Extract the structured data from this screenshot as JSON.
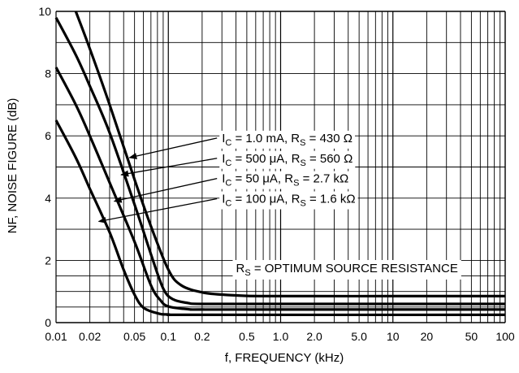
{
  "chart_data": {
    "type": "line",
    "xlabel": "f, FREQUENCY (kHz)",
    "ylabel": "NF, NOISE FIGURE (dB)",
    "xscale": "log",
    "xlim": [
      0.01,
      100
    ],
    "ylim": [
      0,
      10
    ],
    "grid": true,
    "legend": "none",
    "xticks": [
      {
        "value": 0.01,
        "label": "0.01"
      },
      {
        "value": 0.02,
        "label": "0.02"
      },
      {
        "value": 0.05,
        "label": "0.05"
      },
      {
        "value": 0.1,
        "label": "0.1"
      },
      {
        "value": 0.2,
        "label": "0.2"
      },
      {
        "value": 0.5,
        "label": "0.5"
      },
      {
        "value": 1,
        "label": "1.0"
      },
      {
        "value": 2,
        "label": "2.0"
      },
      {
        "value": 5,
        "label": "5.0"
      },
      {
        "value": 10,
        "label": "10"
      },
      {
        "value": 20,
        "label": "20"
      },
      {
        "value": 50,
        "label": "50"
      },
      {
        "value": 100,
        "label": "100"
      }
    ],
    "yticks": [
      {
        "value": 0,
        "label": "0"
      },
      {
        "value": 2,
        "label": "2"
      },
      {
        "value": 4,
        "label": "4"
      },
      {
        "value": 6,
        "label": "6"
      },
      {
        "value": 8,
        "label": "8"
      },
      {
        "value": 10,
        "label": "10"
      }
    ],
    "series": [
      {
        "label": {
          "main": "I",
          "sub1": "C",
          "mid": " = 1.0 mA, R",
          "sub2": "S",
          "end": " = 430 Ω"
        },
        "points": [
          [
            0.015,
            10
          ],
          [
            0.02,
            8.8
          ],
          [
            0.03,
            7.0
          ],
          [
            0.05,
            4.6
          ],
          [
            0.07,
            3.1
          ],
          [
            0.1,
            1.7
          ],
          [
            0.13,
            1.2
          ],
          [
            0.2,
            0.97
          ],
          [
            0.3,
            0.9
          ],
          [
            0.5,
            0.86
          ],
          [
            1,
            0.85
          ],
          [
            10,
            0.85
          ],
          [
            100,
            0.85
          ]
        ],
        "arrow_to": [
          0.045,
          5.3
        ],
        "label_at": [
          0.3,
          5.8
        ]
      },
      {
        "label": {
          "main": "I",
          "sub1": "C",
          "mid": " = 500 μA, R",
          "sub2": "S",
          "end": " = 560 Ω"
        },
        "points": [
          [
            0.01,
            9.8
          ],
          [
            0.015,
            8.6
          ],
          [
            0.02,
            7.6
          ],
          [
            0.03,
            6.1
          ],
          [
            0.05,
            3.8
          ],
          [
            0.07,
            2.2
          ],
          [
            0.09,
            1.1
          ],
          [
            0.11,
            0.75
          ],
          [
            0.15,
            0.63
          ],
          [
            0.2,
            0.6
          ],
          [
            1,
            0.6
          ],
          [
            100,
            0.6
          ]
        ],
        "arrow_to": [
          0.038,
          4.75
        ],
        "label_at": [
          0.3,
          5.15
        ]
      },
      {
        "label": {
          "main": "I",
          "sub1": "C",
          "mid": " = 50 μA, R",
          "sub2": "S",
          "end": " = 2.7 kΩ"
        },
        "points": [
          [
            0.01,
            8.2
          ],
          [
            0.015,
            7.0
          ],
          [
            0.02,
            6.0
          ],
          [
            0.03,
            4.5
          ],
          [
            0.05,
            2.6
          ],
          [
            0.07,
            1.2
          ],
          [
            0.085,
            0.72
          ],
          [
            0.1,
            0.52
          ],
          [
            0.15,
            0.43
          ],
          [
            0.2,
            0.42
          ],
          [
            1,
            0.42
          ],
          [
            100,
            0.42
          ]
        ],
        "arrow_to": [
          0.033,
          3.9
        ],
        "label_at": [
          0.3,
          4.5
        ]
      },
      {
        "label": {
          "main": "I",
          "sub1": "C",
          "mid": " = 100 μA, R",
          "sub2": "S",
          "end": " = 1.6 kΩ"
        },
        "points": [
          [
            0.01,
            6.5
          ],
          [
            0.015,
            5.3
          ],
          [
            0.02,
            4.3
          ],
          [
            0.03,
            2.9
          ],
          [
            0.04,
            1.7
          ],
          [
            0.05,
            0.9
          ],
          [
            0.06,
            0.48
          ],
          [
            0.08,
            0.3
          ],
          [
            0.1,
            0.26
          ],
          [
            0.2,
            0.25
          ],
          [
            100,
            0.25
          ]
        ],
        "arrow_to": [
          0.024,
          3.25
        ],
        "label_at": [
          0.3,
          3.85
        ]
      }
    ],
    "annotation": {
      "main": "R",
      "sub": "S",
      "rest": " = OPTIMUM SOURCE RESISTANCE"
    },
    "annotation_at": [
      0.4,
      1.75
    ]
  }
}
